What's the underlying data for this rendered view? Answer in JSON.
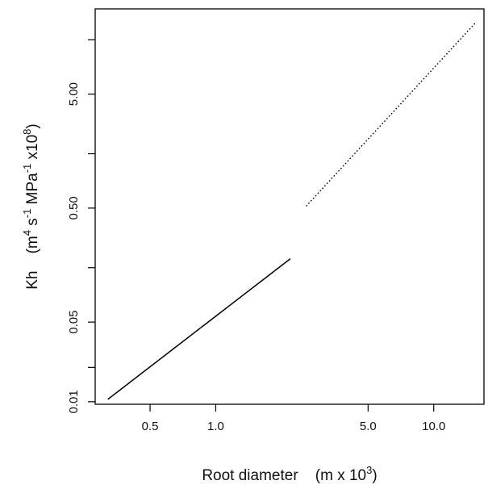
{
  "chart_data": {
    "type": "line",
    "title": "",
    "xlabel": "Root diameter (m x 10³)",
    "ylabel": "Kh (m⁴ s⁻¹ MPa⁻¹ x10⁸)",
    "x_scale": "log",
    "y_scale": "log",
    "xlim": [
      0.28,
      17
    ],
    "ylim": [
      0.0095,
      28
    ],
    "x_ticks": [
      {
        "value": 0.5,
        "label": "0.5"
      },
      {
        "value": 1.0,
        "label": "1.0"
      },
      {
        "value": 5.0,
        "label": "5.0"
      },
      {
        "value": 10.0,
        "label": "10.0"
      }
    ],
    "y_ticks": [
      {
        "value": 0.01,
        "label": "0.01"
      },
      {
        "value": 0.05,
        "label": "0.05"
      },
      {
        "value": 0.5,
        "label": "0.50"
      },
      {
        "value": 5.0,
        "label": "5.00"
      }
    ],
    "y_minor_ticks": [
      0.02,
      0.15,
      1.5,
      15
    ],
    "grid": false,
    "legend": "none",
    "series": [
      {
        "style": "solid",
        "color": "#000000",
        "x": [
          0.32,
          2.2
        ],
        "y": [
          0.0105,
          0.18
        ]
      },
      {
        "style": "dotted",
        "color": "#000000",
        "x": [
          2.6,
          15.5
        ],
        "y": [
          0.52,
          21
        ]
      }
    ]
  }
}
